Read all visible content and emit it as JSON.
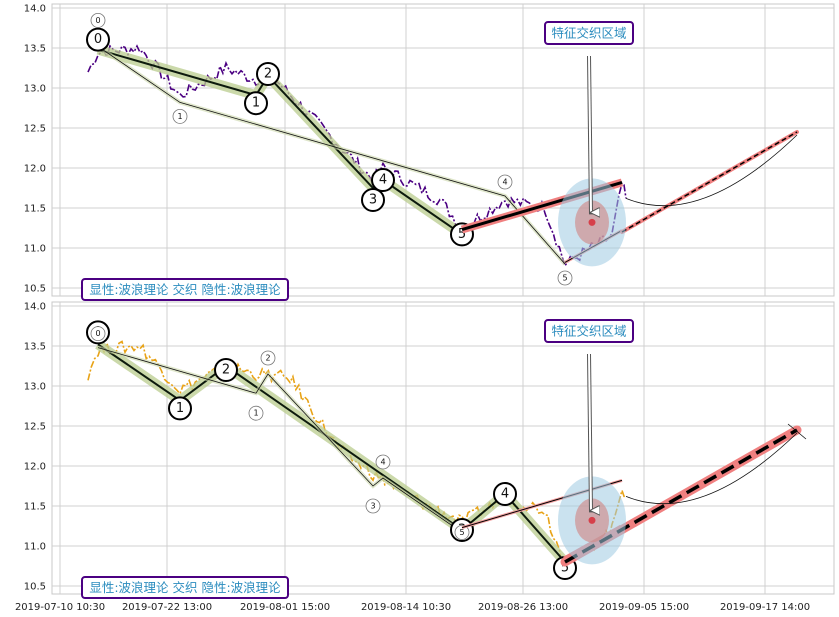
{
  "chart_data": [
    {
      "type": "line",
      "panel": "top",
      "ylim": [
        10.4,
        14.05
      ],
      "yticks": [
        "14.0",
        "13.5",
        "13.0",
        "12.5",
        "12.0",
        "11.5",
        "11.0",
        "10.5"
      ],
      "xticks": [
        "2019-07-10 10:30",
        "2019-07-22 13:00",
        "2019-08-01 15:00",
        "2019-08-14 10:30",
        "2019-08-26 13:00",
        "2019-09-05 15:00",
        "2019-09-17 14:00"
      ],
      "grid": true,
      "price_color": "#4b0082",
      "zone_label": "特征交织区域",
      "legend_text": "显性:波浪理论 交织 隐性:波浪理论",
      "dominant_wave": [
        {
          "label": "0",
          "y": 13.48
        },
        {
          "label": "1",
          "y": 12.91
        },
        {
          "label": "2",
          "y": 13.15
        },
        {
          "label": "3",
          "y": 11.75
        },
        {
          "label": "4",
          "y": 11.85
        },
        {
          "label": "5",
          "y": 11.17
        }
      ],
      "hidden_wave": [
        {
          "label": "0",
          "y": 13.52
        },
        {
          "label": "1",
          "y": 12.82
        },
        {
          "label": "4",
          "y": 11.65
        },
        {
          "label": "5",
          "y": 10.8
        }
      ],
      "projection": {
        "from": 11.2,
        "to": 12.45
      }
    },
    {
      "type": "line",
      "panel": "bottom",
      "ylim": [
        10.4,
        14.05
      ],
      "yticks": [
        "14.0",
        "13.5",
        "13.0",
        "12.5",
        "12.0",
        "11.5",
        "11.0",
        "10.5"
      ],
      "xticks": [
        "2019-07-10 10:30",
        "2019-07-22 13:00",
        "2019-08-01 15:00",
        "2019-08-14 10:30",
        "2019-08-26 13:00",
        "2019-09-05 15:00",
        "2019-09-17 14:00"
      ],
      "grid": true,
      "price_color": "#e8a317",
      "zone_label": "特征交织区域",
      "legend_text": "显性:波浪理论 交织 隐性:波浪理论",
      "dominant_wave": [
        {
          "label": "0",
          "y": 13.52
        },
        {
          "label": "1",
          "y": 12.82
        },
        {
          "label": "2",
          "y": 13.25
        },
        {
          "label": "3",
          "y": 11.2
        },
        {
          "label": "4",
          "y": 11.65
        },
        {
          "label": "5",
          "y": 10.8
        }
      ],
      "hidden_wave": [
        {
          "label": "0",
          "y": 13.48
        },
        {
          "label": "1",
          "y": 12.91
        },
        {
          "label": "2",
          "y": 13.15
        },
        {
          "label": "3",
          "y": 11.75
        },
        {
          "label": "4",
          "y": 11.85
        },
        {
          "label": "5",
          "y": 11.17
        }
      ],
      "projection": {
        "from": 10.8,
        "to": 12.45
      }
    }
  ]
}
